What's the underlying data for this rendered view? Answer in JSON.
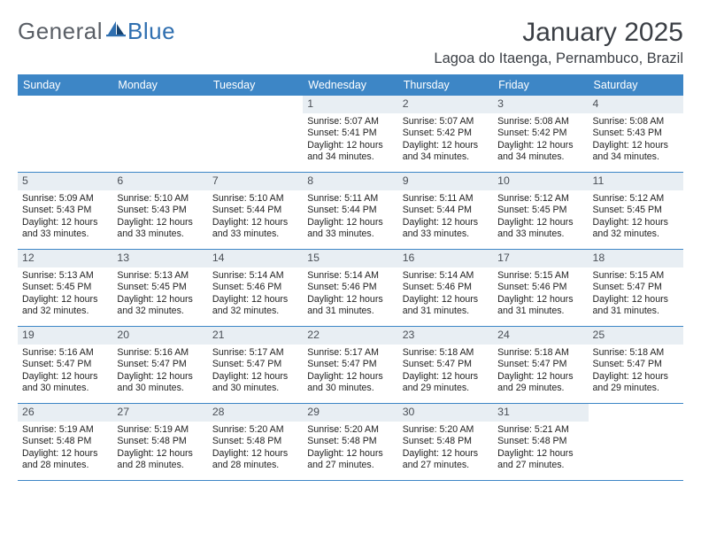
{
  "brand": {
    "general": "General",
    "blue": "Blue"
  },
  "title": "January 2025",
  "location": "Lagoa do Itaenga, Pernambuco, Brazil",
  "colors": {
    "header_bg": "#3d86c6",
    "header_text": "#ffffff",
    "daynum_bg": "#e8eef3",
    "row_border": "#3d86c6",
    "text": "#2c2c2c",
    "brand_gray": "#5a5f66",
    "brand_blue": "#2f6fb0"
  },
  "days_of_week": [
    "Sunday",
    "Monday",
    "Tuesday",
    "Wednesday",
    "Thursday",
    "Friday",
    "Saturday"
  ],
  "weeks": [
    [
      {
        "n": "",
        "sr": "",
        "ss": "",
        "dl": ""
      },
      {
        "n": "",
        "sr": "",
        "ss": "",
        "dl": ""
      },
      {
        "n": "",
        "sr": "",
        "ss": "",
        "dl": ""
      },
      {
        "n": "1",
        "sr": "Sunrise: 5:07 AM",
        "ss": "Sunset: 5:41 PM",
        "dl": "Daylight: 12 hours and 34 minutes."
      },
      {
        "n": "2",
        "sr": "Sunrise: 5:07 AM",
        "ss": "Sunset: 5:42 PM",
        "dl": "Daylight: 12 hours and 34 minutes."
      },
      {
        "n": "3",
        "sr": "Sunrise: 5:08 AM",
        "ss": "Sunset: 5:42 PM",
        "dl": "Daylight: 12 hours and 34 minutes."
      },
      {
        "n": "4",
        "sr": "Sunrise: 5:08 AM",
        "ss": "Sunset: 5:43 PM",
        "dl": "Daylight: 12 hours and 34 minutes."
      }
    ],
    [
      {
        "n": "5",
        "sr": "Sunrise: 5:09 AM",
        "ss": "Sunset: 5:43 PM",
        "dl": "Daylight: 12 hours and 33 minutes."
      },
      {
        "n": "6",
        "sr": "Sunrise: 5:10 AM",
        "ss": "Sunset: 5:43 PM",
        "dl": "Daylight: 12 hours and 33 minutes."
      },
      {
        "n": "7",
        "sr": "Sunrise: 5:10 AM",
        "ss": "Sunset: 5:44 PM",
        "dl": "Daylight: 12 hours and 33 minutes."
      },
      {
        "n": "8",
        "sr": "Sunrise: 5:11 AM",
        "ss": "Sunset: 5:44 PM",
        "dl": "Daylight: 12 hours and 33 minutes."
      },
      {
        "n": "9",
        "sr": "Sunrise: 5:11 AM",
        "ss": "Sunset: 5:44 PM",
        "dl": "Daylight: 12 hours and 33 minutes."
      },
      {
        "n": "10",
        "sr": "Sunrise: 5:12 AM",
        "ss": "Sunset: 5:45 PM",
        "dl": "Daylight: 12 hours and 33 minutes."
      },
      {
        "n": "11",
        "sr": "Sunrise: 5:12 AM",
        "ss": "Sunset: 5:45 PM",
        "dl": "Daylight: 12 hours and 32 minutes."
      }
    ],
    [
      {
        "n": "12",
        "sr": "Sunrise: 5:13 AM",
        "ss": "Sunset: 5:45 PM",
        "dl": "Daylight: 12 hours and 32 minutes."
      },
      {
        "n": "13",
        "sr": "Sunrise: 5:13 AM",
        "ss": "Sunset: 5:45 PM",
        "dl": "Daylight: 12 hours and 32 minutes."
      },
      {
        "n": "14",
        "sr": "Sunrise: 5:14 AM",
        "ss": "Sunset: 5:46 PM",
        "dl": "Daylight: 12 hours and 32 minutes."
      },
      {
        "n": "15",
        "sr": "Sunrise: 5:14 AM",
        "ss": "Sunset: 5:46 PM",
        "dl": "Daylight: 12 hours and 31 minutes."
      },
      {
        "n": "16",
        "sr": "Sunrise: 5:14 AM",
        "ss": "Sunset: 5:46 PM",
        "dl": "Daylight: 12 hours and 31 minutes."
      },
      {
        "n": "17",
        "sr": "Sunrise: 5:15 AM",
        "ss": "Sunset: 5:46 PM",
        "dl": "Daylight: 12 hours and 31 minutes."
      },
      {
        "n": "18",
        "sr": "Sunrise: 5:15 AM",
        "ss": "Sunset: 5:47 PM",
        "dl": "Daylight: 12 hours and 31 minutes."
      }
    ],
    [
      {
        "n": "19",
        "sr": "Sunrise: 5:16 AM",
        "ss": "Sunset: 5:47 PM",
        "dl": "Daylight: 12 hours and 30 minutes."
      },
      {
        "n": "20",
        "sr": "Sunrise: 5:16 AM",
        "ss": "Sunset: 5:47 PM",
        "dl": "Daylight: 12 hours and 30 minutes."
      },
      {
        "n": "21",
        "sr": "Sunrise: 5:17 AM",
        "ss": "Sunset: 5:47 PM",
        "dl": "Daylight: 12 hours and 30 minutes."
      },
      {
        "n": "22",
        "sr": "Sunrise: 5:17 AM",
        "ss": "Sunset: 5:47 PM",
        "dl": "Daylight: 12 hours and 30 minutes."
      },
      {
        "n": "23",
        "sr": "Sunrise: 5:18 AM",
        "ss": "Sunset: 5:47 PM",
        "dl": "Daylight: 12 hours and 29 minutes."
      },
      {
        "n": "24",
        "sr": "Sunrise: 5:18 AM",
        "ss": "Sunset: 5:47 PM",
        "dl": "Daylight: 12 hours and 29 minutes."
      },
      {
        "n": "25",
        "sr": "Sunrise: 5:18 AM",
        "ss": "Sunset: 5:47 PM",
        "dl": "Daylight: 12 hours and 29 minutes."
      }
    ],
    [
      {
        "n": "26",
        "sr": "Sunrise: 5:19 AM",
        "ss": "Sunset: 5:48 PM",
        "dl": "Daylight: 12 hours and 28 minutes."
      },
      {
        "n": "27",
        "sr": "Sunrise: 5:19 AM",
        "ss": "Sunset: 5:48 PM",
        "dl": "Daylight: 12 hours and 28 minutes."
      },
      {
        "n": "28",
        "sr": "Sunrise: 5:20 AM",
        "ss": "Sunset: 5:48 PM",
        "dl": "Daylight: 12 hours and 28 minutes."
      },
      {
        "n": "29",
        "sr": "Sunrise: 5:20 AM",
        "ss": "Sunset: 5:48 PM",
        "dl": "Daylight: 12 hours and 27 minutes."
      },
      {
        "n": "30",
        "sr": "Sunrise: 5:20 AM",
        "ss": "Sunset: 5:48 PM",
        "dl": "Daylight: 12 hours and 27 minutes."
      },
      {
        "n": "31",
        "sr": "Sunrise: 5:21 AM",
        "ss": "Sunset: 5:48 PM",
        "dl": "Daylight: 12 hours and 27 minutes."
      },
      {
        "n": "",
        "sr": "",
        "ss": "",
        "dl": ""
      }
    ]
  ]
}
